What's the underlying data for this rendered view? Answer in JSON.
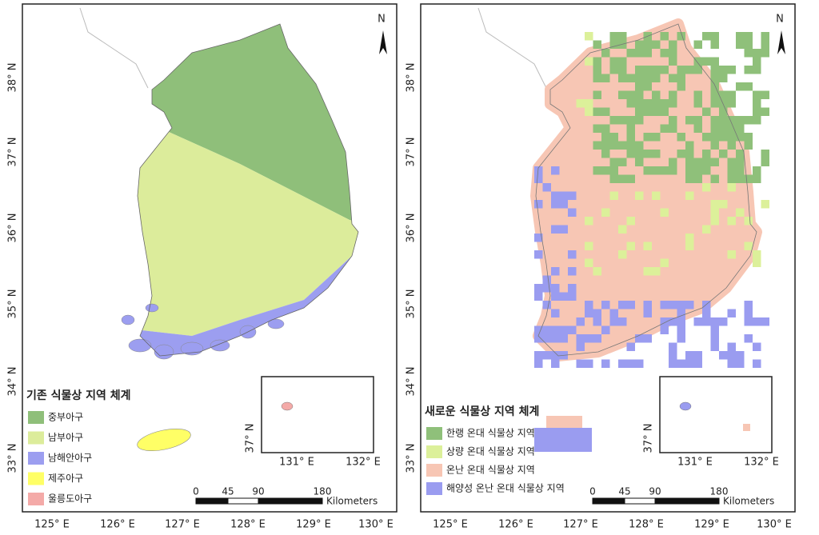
{
  "panels": [
    {
      "north": "N",
      "legend_title": "기존 식물상 지역 체계",
      "legend": [
        {
          "label": "중부아구",
          "color": "#8fbf7a"
        },
        {
          "label": "남부아구",
          "color": "#dcec9b"
        },
        {
          "label": "남해안아구",
          "color": "#9c9ef0"
        },
        {
          "label": "제주아구",
          "color": "#ffff66"
        },
        {
          "label": "울릉도아구",
          "color": "#f4aaa8"
        }
      ],
      "lat_labels": [
        "38° N",
        "37° N",
        "36° N",
        "35° N",
        "34° N",
        "33° N"
      ],
      "lon_labels": [
        "125° E",
        "126° E",
        "127° E",
        "128° E",
        "129° E",
        "130° E"
      ],
      "scale": {
        "labels": [
          "0",
          "45",
          "90",
          "180"
        ],
        "unit": "Kilometers"
      },
      "inset": {
        "lat_label": "37° N",
        "lon_labels": [
          "131° E",
          "132° E"
        ]
      }
    },
    {
      "north": "N",
      "legend_title": "새로운 식물상 지역 체계",
      "legend": [
        {
          "label": "한랭 온대 식물상 지역",
          "color": "#8fc07a"
        },
        {
          "label": "상량 온대 식물상 지역",
          "color": "#dcf09a"
        },
        {
          "label": "온난 온대 식물상 지역",
          "color": "#f7c6b4"
        },
        {
          "label": "해양성 온난 온대 식물상 지역",
          "color": "#9a9cf0"
        }
      ],
      "lat_labels": [
        "38° N",
        "37° N",
        "36° N",
        "35° N",
        "34° N",
        "33° N"
      ],
      "lon_labels": [
        "125° E",
        "126° E",
        "127° E",
        "128° E",
        "129° E",
        "130° E"
      ],
      "scale": {
        "labels": [
          "0",
          "45",
          "90",
          "180"
        ],
        "unit": "Kilometers"
      },
      "inset": {
        "lat_label": "37° N",
        "lon_labels": [
          "131° E",
          "132° E"
        ]
      }
    }
  ]
}
